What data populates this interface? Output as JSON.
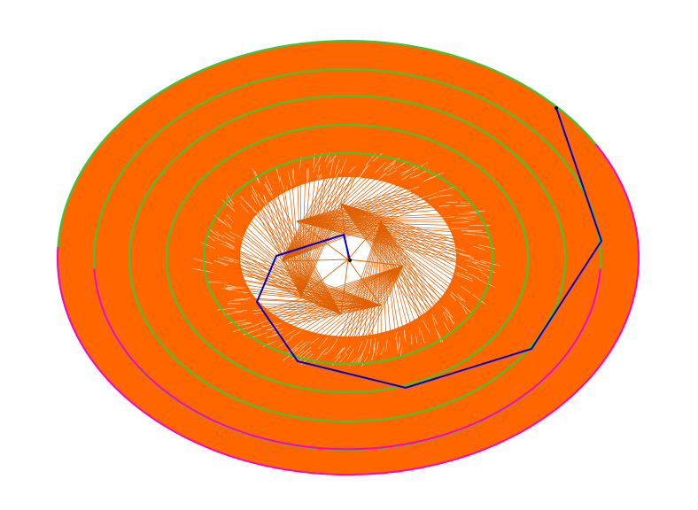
{
  "colors": {
    "background": "#ffffff",
    "fill": "#ff6600",
    "ring_lines": "#33cc33",
    "outer_boundary": "#ff00cc",
    "path": "#0000cc",
    "points": "#000000",
    "hatch": "#e06000"
  },
  "diagram": {
    "ring_count": 5,
    "spiral_turns": 9,
    "path_vertex_count": 9
  }
}
